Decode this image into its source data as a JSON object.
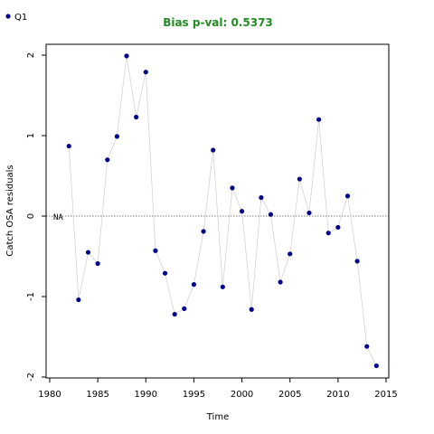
{
  "chart_data": {
    "type": "line",
    "title": "Bias p-val: 0.5373",
    "title_color": "#228B22",
    "xlabel": "Time",
    "ylabel": "Catch OSA residuals",
    "xlim": [
      1980,
      2015
    ],
    "ylim": [
      -2,
      2.1
    ],
    "x_ticks": [
      1980,
      1985,
      1990,
      1995,
      2000,
      2005,
      2010,
      2015
    ],
    "y_ticks": [
      -2,
      -1,
      0,
      1,
      2
    ],
    "grid": false,
    "legend_position": "top-left",
    "reference_line": {
      "y": 0,
      "label": "NA",
      "style": "dotted"
    },
    "series": [
      {
        "name": "Q1",
        "point_color": "#00008B",
        "line_color": "#d3d3d3",
        "x": [
          1982,
          1983,
          1984,
          1985,
          1986,
          1987,
          1988,
          1989,
          1990,
          1991,
          1992,
          1993,
          1994,
          1995,
          1996,
          1997,
          1998,
          1999,
          2000,
          2001,
          2002,
          2003,
          2004,
          2005,
          2006,
          2007,
          2008,
          2009,
          2010,
          2011,
          2012,
          2013,
          2014
        ],
        "y": [
          0.87,
          -1.04,
          -0.45,
          -0.59,
          0.7,
          0.99,
          1.99,
          1.23,
          1.79,
          -0.43,
          -0.71,
          -1.22,
          -1.15,
          -0.85,
          -0.19,
          0.82,
          -0.88,
          0.35,
          0.06,
          -1.16,
          0.23,
          0.02,
          -0.82,
          -0.47,
          0.46,
          0.04,
          1.2,
          -0.21,
          -0.14,
          0.25,
          -0.56,
          -1.62,
          -1.86
        ]
      }
    ]
  }
}
